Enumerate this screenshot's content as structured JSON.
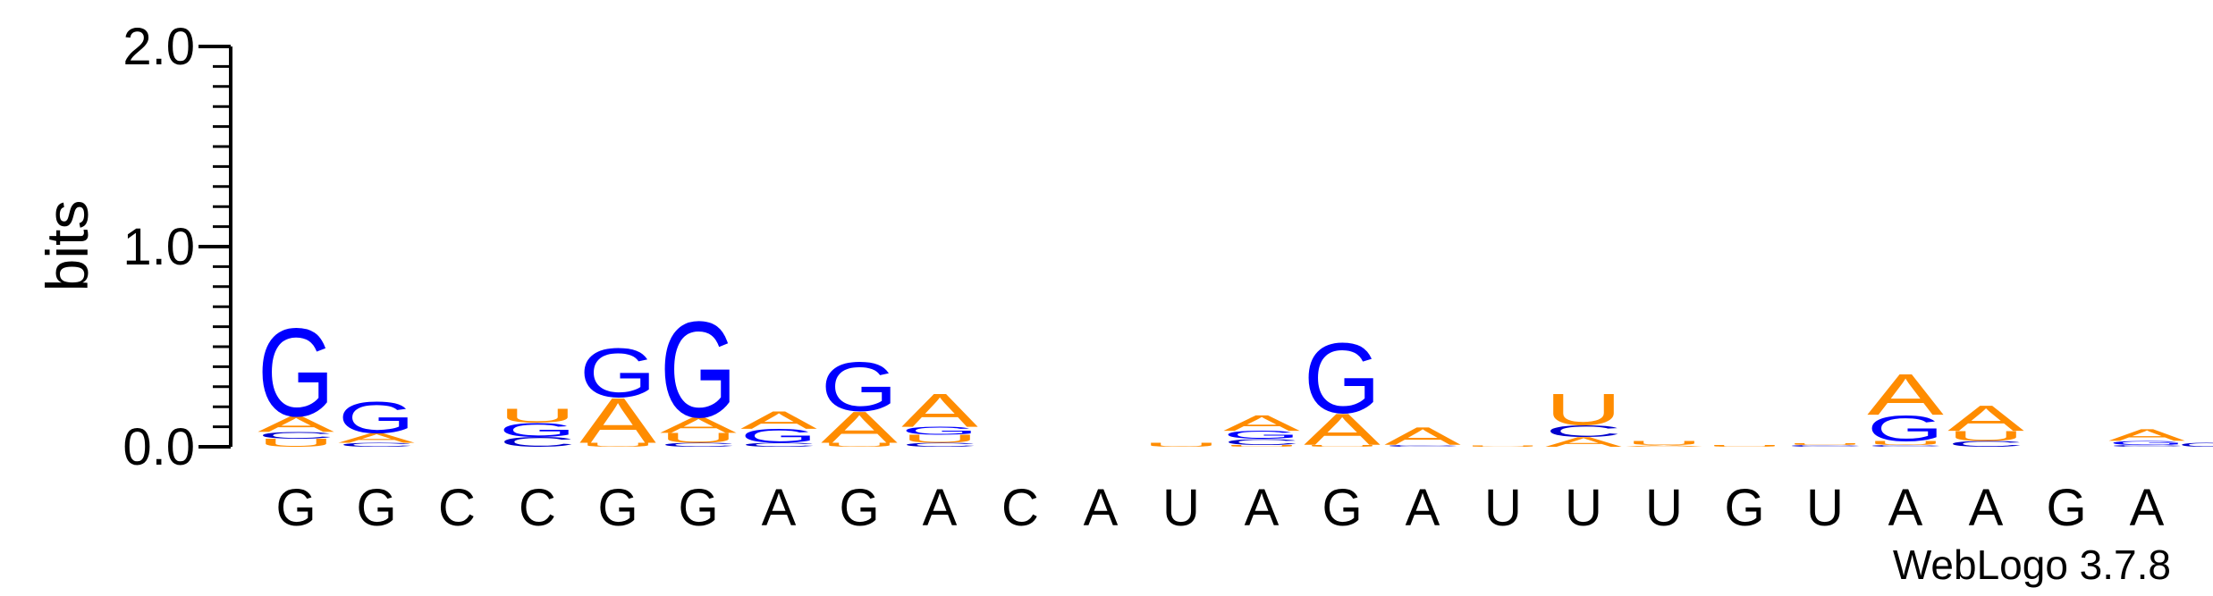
{
  "chart_data": {
    "type": "sequence-logo",
    "ylabel": "bits",
    "ylim": [
      0,
      2
    ],
    "yticks": [
      {
        "value": 0,
        "label": "0.0"
      },
      {
        "value": 1,
        "label": "1.0"
      },
      {
        "value": 2,
        "label": "2.0"
      }
    ],
    "yminor_step": 0.1,
    "alphabet_colors": {
      "A": "#ff8c00",
      "C": "#0000cc",
      "G": "#0000ff",
      "U": "#ff8c00"
    },
    "positions": [
      "G",
      "G",
      "C",
      "C",
      "G",
      "G",
      "A",
      "G",
      "A",
      "C",
      "A",
      "U",
      "A",
      "G",
      "A",
      "U",
      "U",
      "U",
      "G",
      "U",
      "A",
      "A",
      "G",
      "A"
    ],
    "stacks": [
      [
        {
          "letter": "U",
          "value": 0.04
        },
        {
          "letter": "C",
          "value": 0.035
        },
        {
          "letter": "A",
          "value": 0.08
        },
        {
          "letter": "G",
          "value": 0.45
        }
      ],
      [
        {
          "letter": "C",
          "value": 0.02
        },
        {
          "letter": "A",
          "value": 0.05
        },
        {
          "letter": "G",
          "value": 0.16
        }
      ],
      [],
      [
        {
          "letter": "C",
          "value": 0.05
        },
        {
          "letter": "G",
          "value": 0.07
        },
        {
          "letter": "U",
          "value": 0.07
        }
      ],
      [
        {
          "letter": "U",
          "value": 0.02
        },
        {
          "letter": "A",
          "value": 0.23
        },
        {
          "letter": "G",
          "value": 0.25
        }
      ],
      [
        {
          "letter": "C",
          "value": 0.02
        },
        {
          "letter": "U",
          "value": 0.05
        },
        {
          "letter": "A",
          "value": 0.08
        },
        {
          "letter": "G",
          "value": 0.49
        }
      ],
      [
        {
          "letter": "C",
          "value": 0.02
        },
        {
          "letter": "G",
          "value": 0.07
        },
        {
          "letter": "A",
          "value": 0.09
        }
      ],
      [
        {
          "letter": "U",
          "value": 0.02
        },
        {
          "letter": "A",
          "value": 0.16
        },
        {
          "letter": "G",
          "value": 0.25
        }
      ],
      [
        {
          "letter": "C",
          "value": 0.02
        },
        {
          "letter": "U",
          "value": 0.04
        },
        {
          "letter": "G",
          "value": 0.04
        },
        {
          "letter": "A",
          "value": 0.17
        }
      ],
      [],
      [],
      [
        {
          "letter": "U",
          "value": 0.02
        }
      ],
      [
        {
          "letter": "U",
          "value": 0.01
        },
        {
          "letter": "C",
          "value": 0.03
        },
        {
          "letter": "G",
          "value": 0.04
        },
        {
          "letter": "A",
          "value": 0.08
        }
      ],
      [
        {
          "letter": "U",
          "value": 0.01
        },
        {
          "letter": "A",
          "value": 0.16
        },
        {
          "letter": "G",
          "value": 0.36
        }
      ],
      [
        {
          "letter": "C",
          "value": 0.01
        },
        {
          "letter": "A",
          "value": 0.09
        }
      ],
      [
        {
          "letter": "U",
          "value": 0.005
        }
      ],
      [
        {
          "letter": "A",
          "value": 0.05
        },
        {
          "letter": "C",
          "value": 0.06
        },
        {
          "letter": "U",
          "value": 0.16
        }
      ],
      [
        {
          "letter": "A",
          "value": 0.01
        },
        {
          "letter": "U",
          "value": 0.02
        }
      ],
      [
        {
          "letter": "U",
          "value": 0.01
        }
      ],
      [
        {
          "letter": "C",
          "value": 0.01
        },
        {
          "letter": "U",
          "value": 0.01
        }
      ],
      [
        {
          "letter": "C",
          "value": 0.01
        },
        {
          "letter": "U",
          "value": 0.02
        },
        {
          "letter": "G",
          "value": 0.13
        },
        {
          "letter": "A",
          "value": 0.21
        }
      ],
      [
        {
          "letter": "C",
          "value": 0.03
        },
        {
          "letter": "U",
          "value": 0.05
        },
        {
          "letter": "A",
          "value": 0.13
        }
      ],
      [],
      [
        {
          "letter": "C",
          "value": 0.01
        },
        {
          "letter": "G",
          "value": 0.02
        },
        {
          "letter": "A",
          "value": 0.06
        }
      ]
    ],
    "trailing_line": {
      "letter": "C",
      "value": 0.02
    }
  },
  "credit": "WebLogo 3.7.8"
}
